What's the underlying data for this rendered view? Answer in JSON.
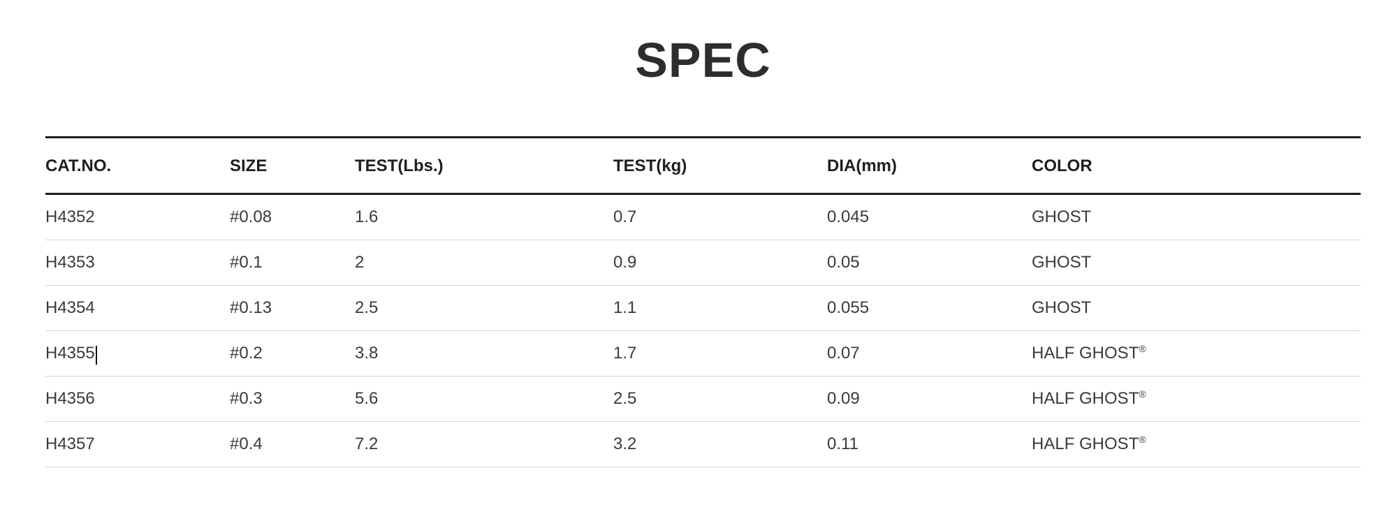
{
  "page": {
    "title": "SPEC"
  },
  "colors": {
    "background": "#ffffff",
    "heading_text": "#2d2d2d",
    "header_text": "#1f1f1f",
    "body_text": "#3a3a3a",
    "border_strong": "#1c1c1c",
    "border_light": "#d4d4d4"
  },
  "table": {
    "columns": [
      {
        "key": "cat_no",
        "label": "CAT.NO."
      },
      {
        "key": "size",
        "label": "SIZE"
      },
      {
        "key": "test_lbs",
        "label": "TEST(Lbs.)"
      },
      {
        "key": "test_kg",
        "label": "TEST(kg)"
      },
      {
        "key": "dia_mm",
        "label": "DIA(mm)"
      },
      {
        "key": "color",
        "label": "COLOR"
      }
    ],
    "rows": [
      {
        "cat_no": "H4352",
        "size": "#0.08",
        "test_lbs": "1.6",
        "test_kg": "0.7",
        "dia_mm": "0.045",
        "color": "GHOST",
        "color_mark": ""
      },
      {
        "cat_no": "H4353",
        "size": "#0.1",
        "test_lbs": "2",
        "test_kg": "0.9",
        "dia_mm": "0.05",
        "color": "GHOST",
        "color_mark": ""
      },
      {
        "cat_no": "H4354",
        "size": "#0.13",
        "test_lbs": "2.5",
        "test_kg": "1.1",
        "dia_mm": "0.055",
        "color": "GHOST",
        "color_mark": ""
      },
      {
        "cat_no": "H4355",
        "size": "#0.2",
        "test_lbs": "3.8",
        "test_kg": "1.7",
        "dia_mm": "0.07",
        "color": "HALF GHOST",
        "color_mark": "®"
      },
      {
        "cat_no": "H4356",
        "size": "#0.3",
        "test_lbs": "5.6",
        "test_kg": "2.5",
        "dia_mm": "0.09",
        "color": "HALF GHOST",
        "color_mark": "®"
      },
      {
        "cat_no": "H4357",
        "size": "#0.4",
        "test_lbs": "7.2",
        "test_kg": "3.2",
        "dia_mm": "0.11",
        "color": "HALF GHOST",
        "color_mark": "®"
      }
    ]
  }
}
